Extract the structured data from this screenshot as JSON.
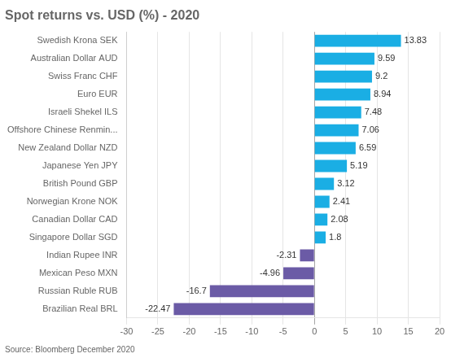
{
  "chart_data": {
    "type": "bar",
    "orientation": "horizontal",
    "title": "Spot returns vs. USD (%) - 2020",
    "annotations": [
      "Source: Bloomberg December 2020"
    ],
    "categories": [
      "Brazilian Real BRL",
      "Russian Ruble RUB",
      "Mexican Peso MXN",
      "Indian Rupee INR",
      "Singapore Dollar SGD",
      "Canadian Dollar CAD",
      "Norwegian Krone NOK",
      "British Pound GBP",
      "Japanese Yen JPY",
      "New Zealand Dollar NZD",
      "Offshore Chinese Renmin...",
      "Israeli Shekel ILS",
      "Euro EUR",
      "Swiss Franc CHF",
      "Australian Dollar AUD",
      "Swedish Krona SEK"
    ],
    "values": [
      -22.47,
      -16.7,
      -4.96,
      -2.31,
      1.8,
      2.08,
      2.41,
      3.12,
      5.19,
      6.59,
      7.06,
      7.48,
      8.94,
      9.2,
      9.59,
      13.83
    ],
    "colors": [
      "#6B5BA6",
      "#6B5BA6",
      "#6B5BA6",
      "#6B5BA6",
      "#1AAEE4",
      "#1AAEE4",
      "#1AAEE4",
      "#1AAEE4",
      "#1AAEE4",
      "#1AAEE4",
      "#1AAEE4",
      "#1AAEE4",
      "#1AAEE4",
      "#1AAEE4",
      "#1AAEE4",
      "#1AAEE4"
    ],
    "xlim": [
      -30,
      20
    ],
    "xticks": [
      -30,
      -25,
      -20,
      -15,
      -10,
      -5,
      0,
      5,
      10,
      15,
      20
    ],
    "grid": true,
    "data_labels": true
  }
}
